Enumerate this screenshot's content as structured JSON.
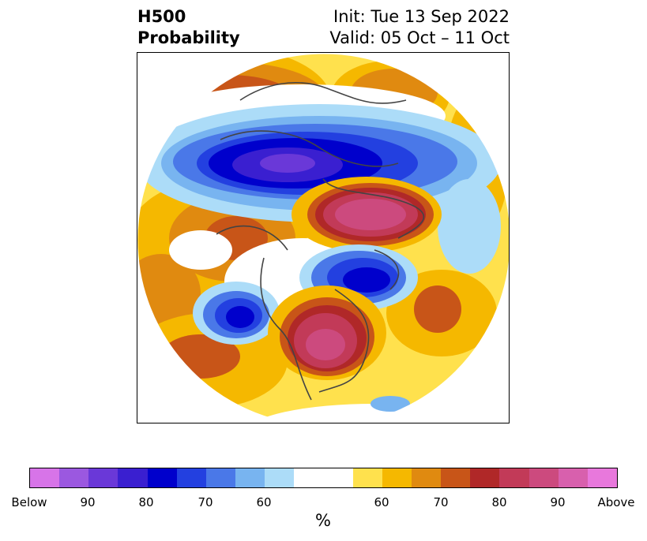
{
  "title": {
    "left_line1": "H500",
    "left_line2": "Probability",
    "right_line1": "Init: Tue 13 Sep 2022",
    "right_line2": "Valid: 05 Oct – 11 Oct"
  },
  "colorbar": {
    "unit": "%",
    "tick_labels": [
      "Below",
      "90",
      "80",
      "70",
      "60",
      "60",
      "70",
      "80",
      "90",
      "Above"
    ],
    "colors": [
      "#d774e8",
      "#9b58e0",
      "#6a38d8",
      "#3a1fd0",
      "#0000cc",
      "#2340e0",
      "#4a78e8",
      "#78b4f0",
      "#acdcf8",
      "#ffffff",
      "#ffe14d",
      "#f5b800",
      "#e08a10",
      "#c85518",
      "#b02828",
      "#c23a58",
      "#cc4a7e",
      "#d860ad",
      "#e878dc"
    ]
  },
  "map": {
    "projection": "north-polar-stereographic",
    "anomalies": [
      {
        "label": "positive",
        "level": "high",
        "color": "#c23a58"
      },
      {
        "label": "negative",
        "level": "high",
        "color": "#0000cc"
      }
    ]
  }
}
